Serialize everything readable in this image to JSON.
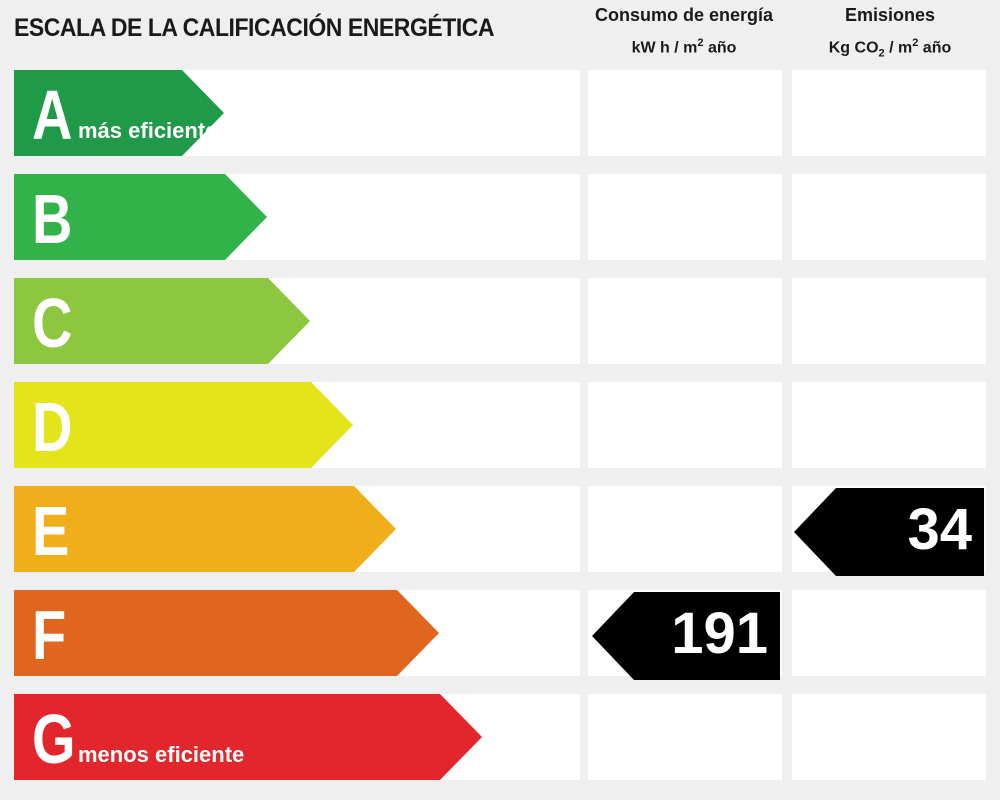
{
  "title": "ESCALA DE LA CALIFICACIÓN ENERGÉTICA",
  "columns": {
    "energy": {
      "line1": "Consumo de energía",
      "line2_prefix": "kW h / m",
      "line2_sup": "2",
      "line2_suffix": " año"
    },
    "emissions": {
      "line1": "Emisiones",
      "line2_prefix": "Kg CO",
      "line2_sub": "2",
      "line2_mid": " / m",
      "line2_sup": "2",
      "line2_suffix": " año"
    }
  },
  "ratings": [
    {
      "letter": "A",
      "note": "más eficiente",
      "color": "#1f9a48"
    },
    {
      "letter": "B",
      "note": "",
      "color": "#31b34a"
    },
    {
      "letter": "C",
      "note": "",
      "color": "#8dc63f"
    },
    {
      "letter": "D",
      "note": "",
      "color": "#e4e41a"
    },
    {
      "letter": "E",
      "note": "",
      "color": "#f0ae1b"
    },
    {
      "letter": "F",
      "note": "",
      "color": "#e0651f"
    },
    {
      "letter": "G",
      "note": "menos eficiente",
      "color": "#e3262b"
    }
  ],
  "indicators": {
    "energy": {
      "value": "191",
      "rating": "F",
      "color": "#000000"
    },
    "emissions": {
      "value": "34",
      "rating": "E",
      "color": "#000000"
    }
  }
}
